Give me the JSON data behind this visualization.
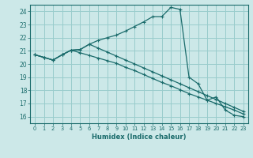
{
  "xlabel": "Humidex (Indice chaleur)",
  "ylabel": "",
  "bg_color": "#cce8e8",
  "grid_color": "#99cccc",
  "line_color": "#1a6b6b",
  "xlim": [
    -0.5,
    23.5
  ],
  "ylim": [
    15.5,
    24.5
  ],
  "xticks": [
    0,
    1,
    2,
    3,
    4,
    5,
    6,
    7,
    8,
    9,
    10,
    11,
    12,
    13,
    14,
    15,
    16,
    17,
    18,
    19,
    20,
    21,
    22,
    23
  ],
  "yticks": [
    16,
    17,
    18,
    19,
    20,
    21,
    22,
    23,
    24
  ],
  "series": [
    [
      20.7,
      20.5,
      20.3,
      20.7,
      21.05,
      21.1,
      21.5,
      21.8,
      22.0,
      22.2,
      22.5,
      22.85,
      23.2,
      23.6,
      23.6,
      24.3,
      24.15,
      19.0,
      18.5,
      17.25,
      17.5,
      16.5,
      16.1,
      16.0
    ],
    [
      20.7,
      20.5,
      20.3,
      20.7,
      21.05,
      20.85,
      20.65,
      20.45,
      20.25,
      20.05,
      19.75,
      19.5,
      19.2,
      18.9,
      18.6,
      18.35,
      18.05,
      17.75,
      17.5,
      17.25,
      17.0,
      16.75,
      16.5,
      16.2
    ],
    [
      20.7,
      20.5,
      20.3,
      20.7,
      21.05,
      21.1,
      21.5,
      21.2,
      20.9,
      20.6,
      20.3,
      20.0,
      19.7,
      19.4,
      19.1,
      18.8,
      18.5,
      18.2,
      17.9,
      17.6,
      17.3,
      17.0,
      16.7,
      16.4
    ]
  ]
}
